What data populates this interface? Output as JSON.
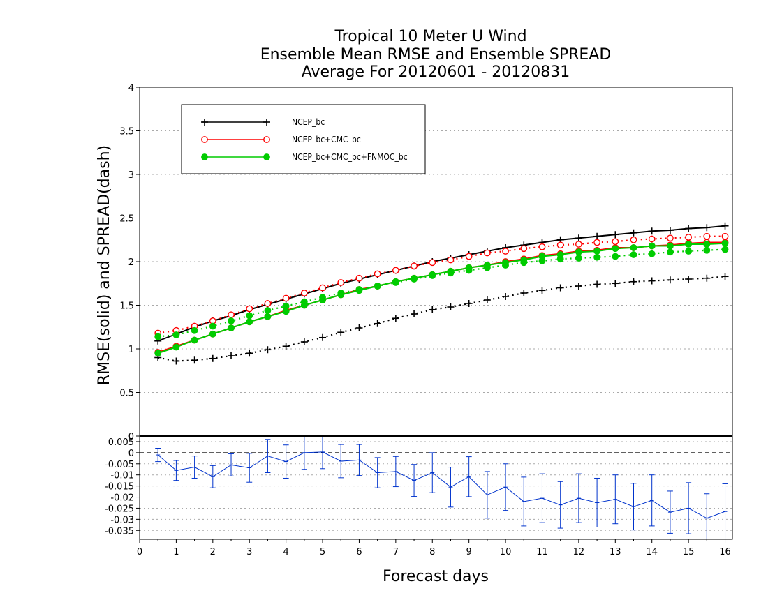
{
  "chart_data": [
    {
      "type": "line",
      "title": "Tropical 10 Meter U Wind",
      "subtitle": "Ensemble Mean RMSE and Ensemble SPREAD",
      "subtitle2": "Average For 20120601 - 20120831",
      "ylabel": "RMSE(solid) and SPREAD(dash)",
      "ylim": [
        0,
        4
      ],
      "yticks": [
        "0",
        "0.5",
        "1",
        "1.5",
        "2",
        "2.5",
        "3",
        "3.5",
        "4"
      ],
      "grid": true,
      "legend_position": "top-left",
      "x": [
        0.5,
        1,
        1.5,
        2,
        2.5,
        3,
        3.5,
        4,
        4.5,
        5,
        5.5,
        6,
        6.5,
        7,
        7.5,
        8,
        8.5,
        9,
        9.5,
        10,
        10.5,
        11,
        11.5,
        12,
        12.5,
        13,
        13.5,
        14,
        14.5,
        15,
        15.5,
        16
      ],
      "series": [
        {
          "name": "NCEP_bc",
          "style": "solid",
          "color": "#000000",
          "marker": "plus",
          "values": [
            1.09,
            1.17,
            1.25,
            1.32,
            1.38,
            1.45,
            1.51,
            1.57,
            1.63,
            1.69,
            1.75,
            1.8,
            1.85,
            1.9,
            1.95,
            2.0,
            2.04,
            2.08,
            2.12,
            2.16,
            2.19,
            2.22,
            2.25,
            2.27,
            2.29,
            2.31,
            2.33,
            2.35,
            2.36,
            2.38,
            2.39,
            2.41
          ]
        },
        {
          "style": "dotted",
          "color": "#000000",
          "marker": "plus",
          "values": [
            0.9,
            0.86,
            0.87,
            0.89,
            0.92,
            0.95,
            0.99,
            1.03,
            1.08,
            1.13,
            1.19,
            1.24,
            1.29,
            1.35,
            1.4,
            1.45,
            1.48,
            1.52,
            1.56,
            1.6,
            1.64,
            1.67,
            1.7,
            1.72,
            1.74,
            1.75,
            1.77,
            1.78,
            1.79,
            1.8,
            1.81,
            1.83
          ]
        },
        {
          "name": "NCEP_bc+CMC_bc",
          "style": "solid",
          "color": "#ff0000",
          "marker": "open-circle",
          "values": [
            0.96,
            1.03,
            1.1,
            1.17,
            1.24,
            1.31,
            1.37,
            1.44,
            1.5,
            1.56,
            1.62,
            1.68,
            1.72,
            1.77,
            1.81,
            1.85,
            1.89,
            1.93,
            1.96,
            2.0,
            2.03,
            2.07,
            2.09,
            2.12,
            2.13,
            2.16,
            2.16,
            2.18,
            2.19,
            2.21,
            2.22,
            2.22
          ]
        },
        {
          "style": "dotted",
          "color": "#ff0000",
          "marker": "open-circle",
          "values": [
            1.18,
            1.21,
            1.26,
            1.32,
            1.39,
            1.46,
            1.52,
            1.58,
            1.64,
            1.7,
            1.76,
            1.81,
            1.86,
            1.9,
            1.95,
            1.99,
            2.02,
            2.06,
            2.1,
            2.12,
            2.15,
            2.17,
            2.19,
            2.2,
            2.22,
            2.23,
            2.25,
            2.26,
            2.27,
            2.28,
            2.29,
            2.29
          ]
        },
        {
          "name": "NCEP_bc+CMC_bc+FNMOC_bc",
          "style": "solid",
          "color": "#00cc00",
          "marker": "filled-circle",
          "values": [
            0.95,
            1.02,
            1.1,
            1.17,
            1.24,
            1.31,
            1.37,
            1.43,
            1.5,
            1.56,
            1.62,
            1.67,
            1.72,
            1.77,
            1.81,
            1.85,
            1.89,
            1.93,
            1.96,
            1.99,
            2.02,
            2.06,
            2.08,
            2.11,
            2.12,
            2.15,
            2.16,
            2.18,
            2.18,
            2.2,
            2.2,
            2.21
          ]
        },
        {
          "style": "dotted",
          "color": "#00cc00",
          "marker": "filled-circle",
          "values": [
            1.14,
            1.16,
            1.21,
            1.26,
            1.32,
            1.38,
            1.44,
            1.49,
            1.54,
            1.59,
            1.64,
            1.68,
            1.72,
            1.76,
            1.8,
            1.84,
            1.87,
            1.9,
            1.93,
            1.96,
            1.99,
            2.01,
            2.03,
            2.04,
            2.05,
            2.06,
            2.08,
            2.09,
            2.11,
            2.12,
            2.13,
            2.14
          ]
        }
      ]
    },
    {
      "type": "line",
      "xlabel": "Forecast days",
      "xlim": [
        0,
        16.2
      ],
      "xticks": [
        "0",
        "1",
        "2",
        "3",
        "4",
        "5",
        "6",
        "7",
        "8",
        "9",
        "10",
        "11",
        "12",
        "13",
        "14",
        "15",
        "16"
      ],
      "ylim": [
        -0.039,
        0.0075
      ],
      "yticks": [
        "0.005",
        "0",
        "-0.005",
        "-0.01",
        "-0.015",
        "-0.02",
        "-0.025",
        "-0.03",
        "-0.035"
      ],
      "reference_line": 0,
      "x": [
        0.5,
        1,
        1.5,
        2,
        2.5,
        3,
        3.5,
        4,
        4.5,
        5,
        5.5,
        6,
        6.5,
        7,
        7.5,
        8,
        8.5,
        9,
        9.5,
        10,
        10.5,
        11,
        11.5,
        12,
        12.5,
        13,
        13.5,
        14,
        14.5,
        15,
        15.5,
        16
      ],
      "series": [
        {
          "color": "#0033cc",
          "error_bars": true,
          "values": [
            -0.001,
            -0.008,
            -0.0065,
            -0.0108,
            -0.0055,
            -0.0068,
            -0.0015,
            -0.004,
            0,
            0.0003,
            -0.0038,
            -0.0033,
            -0.009,
            -0.0085,
            -0.0125,
            -0.009,
            -0.0155,
            -0.0108,
            -0.019,
            -0.0155,
            -0.022,
            -0.0205,
            -0.0235,
            -0.0205,
            -0.0225,
            -0.021,
            -0.0243,
            -0.0215,
            -0.0268,
            -0.025,
            -0.0295,
            -0.0265
          ],
          "errors": [
            0.003,
            0.0045,
            0.005,
            0.005,
            0.005,
            0.0065,
            0.0075,
            0.0075,
            0.0075,
            0.0075,
            0.0075,
            0.007,
            0.0068,
            0.0068,
            0.0072,
            0.009,
            0.009,
            0.009,
            0.0105,
            0.0105,
            0.011,
            0.011,
            0.0105,
            0.011,
            0.011,
            0.011,
            0.0105,
            0.0115,
            0.0095,
            0.0115,
            0.011,
            0.0125
          ]
        }
      ]
    }
  ]
}
